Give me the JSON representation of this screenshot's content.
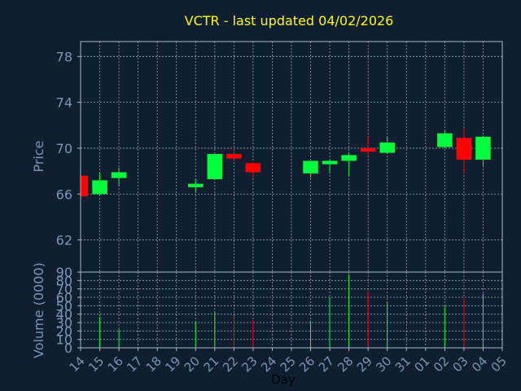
{
  "title": "VCTR - last updated 04/02/2026",
  "colors": {
    "background": "#0f1f30",
    "frame": "#a8b8cc",
    "grid": "#c8d2dc",
    "title": "#ffff00",
    "axis_text": "#7a95b5",
    "up": "#00ff3c",
    "down": "#ff0000"
  },
  "chart_data": {
    "type": "candlestick",
    "xlabel": "Day",
    "x_ticks": [
      "14",
      "15",
      "16",
      "17",
      "18",
      "19",
      "20",
      "21",
      "22",
      "23",
      "24",
      "25",
      "26",
      "27",
      "28",
      "29",
      "30",
      "31",
      "01",
      "02",
      "03",
      "04",
      "05"
    ],
    "price_panel": {
      "ylabel": "Price",
      "yticks": [
        62,
        66,
        70,
        74,
        78
      ],
      "ylim": [
        59.2,
        79.3
      ],
      "grid": true
    },
    "volume_panel": {
      "ylabel": "Volume (0000)",
      "yticks": [
        0,
        10,
        20,
        30,
        40,
        50,
        60,
        70,
        80,
        90
      ],
      "ylim": [
        0,
        90
      ],
      "grid": true
    },
    "candles": [
      {
        "day": "14",
        "open": 67.6,
        "high": 67.6,
        "low": 65.8,
        "close": 65.8,
        "volume": 0
      },
      {
        "day": "15",
        "open": 66.0,
        "high": 67.8,
        "low": 65.9,
        "close": 67.2,
        "volume": 37
      },
      {
        "day": "16",
        "open": 67.4,
        "high": 68.3,
        "low": 66.8,
        "close": 67.9,
        "volume": 22
      },
      {
        "day": "20",
        "open": 66.6,
        "high": 67.3,
        "low": 66.2,
        "close": 66.9,
        "volume": 31
      },
      {
        "day": "21",
        "open": 67.3,
        "high": 69.5,
        "low": 67.2,
        "close": 69.5,
        "volume": 43
      },
      {
        "day": "22",
        "open": 69.5,
        "high": 70.1,
        "low": 69.0,
        "close": 69.1,
        "volume": 38
      },
      {
        "day": "23",
        "open": 68.7,
        "high": 68.8,
        "low": 67.4,
        "close": 67.9,
        "volume": 33
      },
      {
        "day": "26",
        "open": 67.8,
        "high": 68.9,
        "low": 67.4,
        "close": 68.9,
        "volume": 32
      },
      {
        "day": "27",
        "open": 68.6,
        "high": 69.0,
        "low": 67.8,
        "close": 68.9,
        "volume": 60
      },
      {
        "day": "28",
        "open": 68.9,
        "high": 69.6,
        "low": 67.6,
        "close": 69.4,
        "volume": 87
      },
      {
        "day": "29",
        "open": 70.0,
        "high": 71.0,
        "low": 69.4,
        "close": 69.7,
        "volume": 67
      },
      {
        "day": "30",
        "open": 69.6,
        "high": 71.0,
        "low": 69.5,
        "close": 70.5,
        "volume": 54
      },
      {
        "day": "02",
        "open": 70.1,
        "high": 71.5,
        "low": 70.0,
        "close": 71.3,
        "volume": 49
      },
      {
        "day": "03",
        "open": 70.9,
        "high": 71.7,
        "low": 67.8,
        "close": 69.0,
        "volume": 59
      },
      {
        "day": "04",
        "open": 69.0,
        "high": 71.1,
        "low": 68.5,
        "close": 71.0,
        "volume": 64
      }
    ]
  }
}
